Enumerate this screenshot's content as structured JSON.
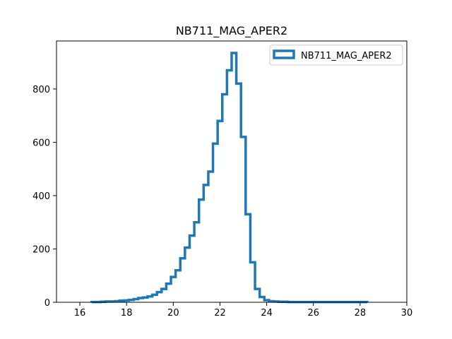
{
  "chart_data": {
    "type": "histogram",
    "title": "NB711_MAG_APER2",
    "xlabel": "",
    "ylabel": "",
    "xlim": [
      15,
      30
    ],
    "ylim": [
      0,
      980
    ],
    "xticks": [
      16,
      18,
      20,
      22,
      24,
      26,
      28,
      30
    ],
    "yticks": [
      0,
      200,
      400,
      600,
      800
    ],
    "grid": false,
    "legend_position": "top-right",
    "series": [
      {
        "name": "NB711_MAG_APER2",
        "color": "#1f77b4",
        "histtype": "step",
        "bin_edges": [
          16.5,
          16.7,
          16.9,
          17.1,
          17.3,
          17.5,
          17.7,
          17.9,
          18.1,
          18.3,
          18.5,
          18.7,
          18.9,
          19.1,
          19.3,
          19.5,
          19.7,
          19.9,
          20.1,
          20.3,
          20.5,
          20.7,
          20.9,
          21.1,
          21.3,
          21.5,
          21.7,
          21.9,
          22.1,
          22.3,
          22.5,
          22.7,
          22.9,
          23.1,
          23.3,
          23.5,
          23.7,
          23.9,
          24.1,
          24.3,
          24.5,
          24.7,
          24.9,
          25.1,
          25.3,
          25.5,
          25.7,
          25.9,
          26.1,
          26.3,
          26.5,
          26.7,
          26.9,
          27.1,
          27.3,
          27.5,
          27.7,
          27.9,
          28.1,
          28.3
        ],
        "counts": [
          1,
          1,
          2,
          3,
          3,
          4,
          6,
          7,
          9,
          12,
          16,
          18,
          22,
          28,
          38,
          50,
          70,
          95,
          120,
          165,
          205,
          250,
          300,
          385,
          440,
          490,
          595,
          680,
          780,
          870,
          935,
          820,
          620,
          330,
          150,
          50,
          20,
          8,
          4,
          3,
          2,
          2,
          1,
          1,
          1,
          1,
          1,
          1,
          1,
          1,
          1,
          1,
          1,
          1,
          1,
          1,
          1,
          1,
          1
        ]
      }
    ]
  }
}
